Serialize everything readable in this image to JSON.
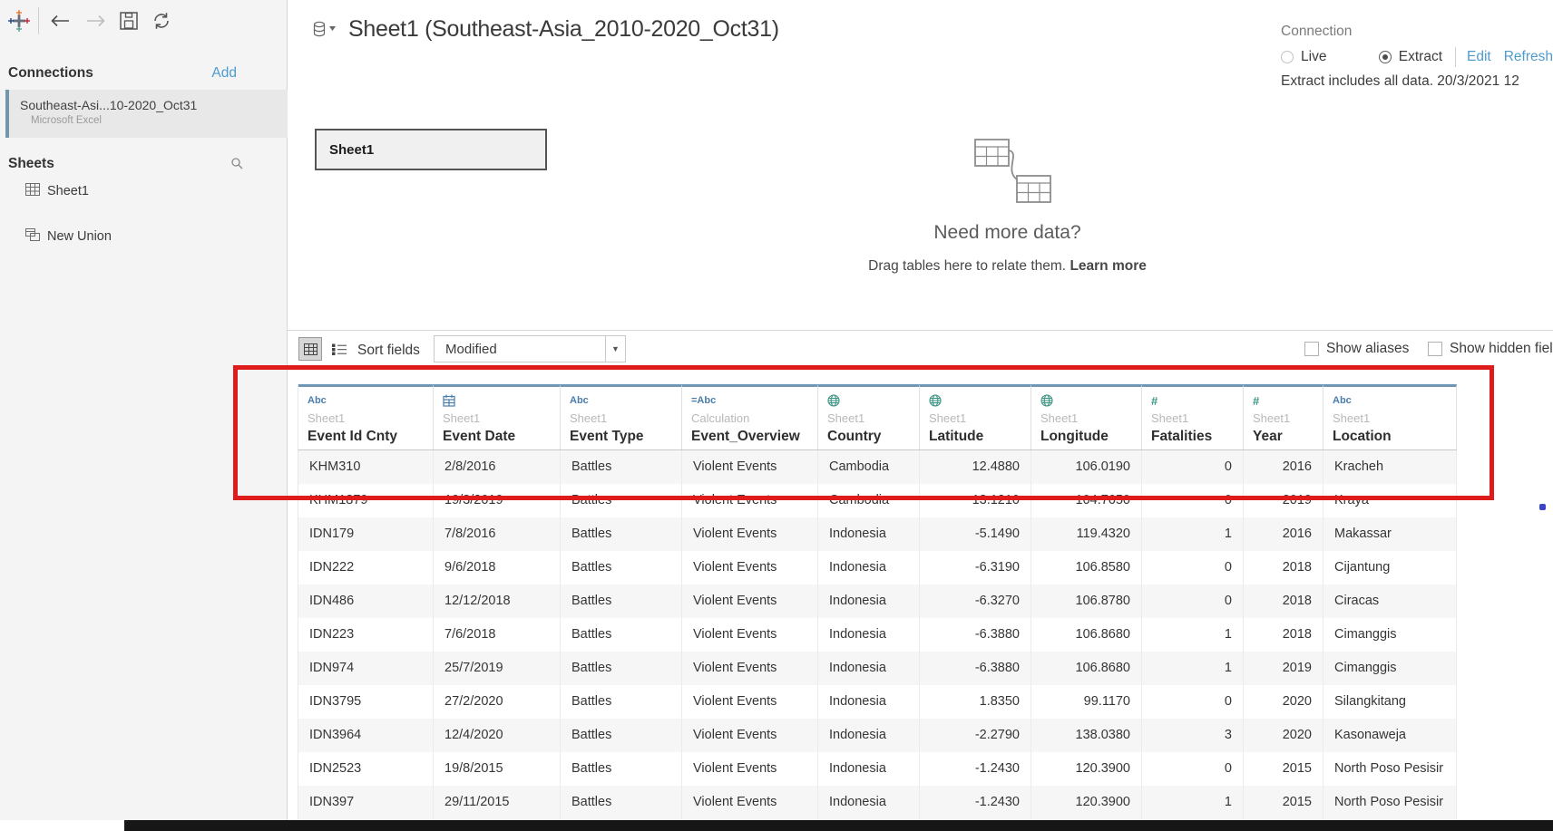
{
  "sidebar": {
    "connections_header": "Connections",
    "add_link": "Add",
    "connection": {
      "name": "Southeast-Asi...10-2020_Oct31",
      "type": "Microsoft Excel"
    },
    "sheets_header": "Sheets",
    "sheet_item_label": "Sheet1",
    "new_union_label": "New Union"
  },
  "header": {
    "title": "Sheet1 (Southeast-Asia_2010-2020_Oct31)",
    "connection_label": "Connection",
    "live_label": "Live",
    "extract_label": "Extract",
    "edit_link": "Edit",
    "refresh_link": "Refresh",
    "extract_status": "Extract includes all data. 20/3/2021 12"
  },
  "canvas": {
    "sheet_box_label": "Sheet1",
    "need_more_data_heading": "Need more data?",
    "drag_hint": "Drag tables here to relate them.",
    "learn_more": "Learn more"
  },
  "grid_toolbar": {
    "sort_fields_label": "Sort fields",
    "sort_value": "Modified",
    "show_aliases_label": "Show aliases",
    "show_hidden_label": "Show hidden fields"
  },
  "table": {
    "columns": [
      {
        "type": "string",
        "source": "Sheet1",
        "name": "Event Id Cnty",
        "align": "left"
      },
      {
        "type": "date",
        "source": "Sheet1",
        "name": "Event Date",
        "align": "left"
      },
      {
        "type": "string",
        "source": "Sheet1",
        "name": "Event Type",
        "align": "left"
      },
      {
        "type": "calculation",
        "source": "Calculation",
        "name": "Event_Overview",
        "align": "left"
      },
      {
        "type": "geo",
        "source": "Sheet1",
        "name": "Country",
        "align": "left"
      },
      {
        "type": "geo",
        "source": "Sheet1",
        "name": "Latitude",
        "align": "right"
      },
      {
        "type": "geo",
        "source": "Sheet1",
        "name": "Longitude",
        "align": "right"
      },
      {
        "type": "number",
        "source": "Sheet1",
        "name": "Fatalities",
        "align": "right"
      },
      {
        "type": "number",
        "source": "Sheet1",
        "name": "Year",
        "align": "right"
      },
      {
        "type": "string",
        "source": "Sheet1",
        "name": "Location",
        "align": "left"
      }
    ],
    "rows": [
      [
        "KHM310",
        "2/8/2016",
        "Battles",
        "Violent Events",
        "Cambodia",
        "12.4880",
        "106.0190",
        "0",
        "2016",
        "Kracheh"
      ],
      [
        "KHM1879",
        "19/3/2019",
        "Battles",
        "Violent Events",
        "Cambodia",
        "13.1210",
        "104.7650",
        "0",
        "2019",
        "Kraya"
      ],
      [
        "IDN179",
        "7/8/2016",
        "Battles",
        "Violent Events",
        "Indonesia",
        "-5.1490",
        "119.4320",
        "1",
        "2016",
        "Makassar"
      ],
      [
        "IDN222",
        "9/6/2018",
        "Battles",
        "Violent Events",
        "Indonesia",
        "-6.3190",
        "106.8580",
        "0",
        "2018",
        "Cijantung"
      ],
      [
        "IDN486",
        "12/12/2018",
        "Battles",
        "Violent Events",
        "Indonesia",
        "-6.3270",
        "106.8780",
        "0",
        "2018",
        "Ciracas"
      ],
      [
        "IDN223",
        "7/6/2018",
        "Battles",
        "Violent Events",
        "Indonesia",
        "-6.3880",
        "106.8680",
        "1",
        "2018",
        "Cimanggis"
      ],
      [
        "IDN974",
        "25/7/2019",
        "Battles",
        "Violent Events",
        "Indonesia",
        "-6.3880",
        "106.8680",
        "1",
        "2019",
        "Cimanggis"
      ],
      [
        "IDN3795",
        "27/2/2020",
        "Battles",
        "Violent Events",
        "Indonesia",
        "1.8350",
        "99.1170",
        "0",
        "2020",
        "Silangkitang"
      ],
      [
        "IDN3964",
        "12/4/2020",
        "Battles",
        "Violent Events",
        "Indonesia",
        "-2.2790",
        "138.0380",
        "3",
        "2020",
        "Kasonaweja"
      ],
      [
        "IDN2523",
        "19/8/2015",
        "Battles",
        "Violent Events",
        "Indonesia",
        "-1.2430",
        "120.3900",
        "0",
        "2015",
        "North Poso Pesisir"
      ],
      [
        "IDN397",
        "29/11/2015",
        "Battles",
        "Violent Events",
        "Indonesia",
        "-1.2430",
        "120.3900",
        "1",
        "2015",
        "North Poso Pesisir"
      ]
    ]
  },
  "annotation": {
    "rect_color": "#de1c1c"
  }
}
